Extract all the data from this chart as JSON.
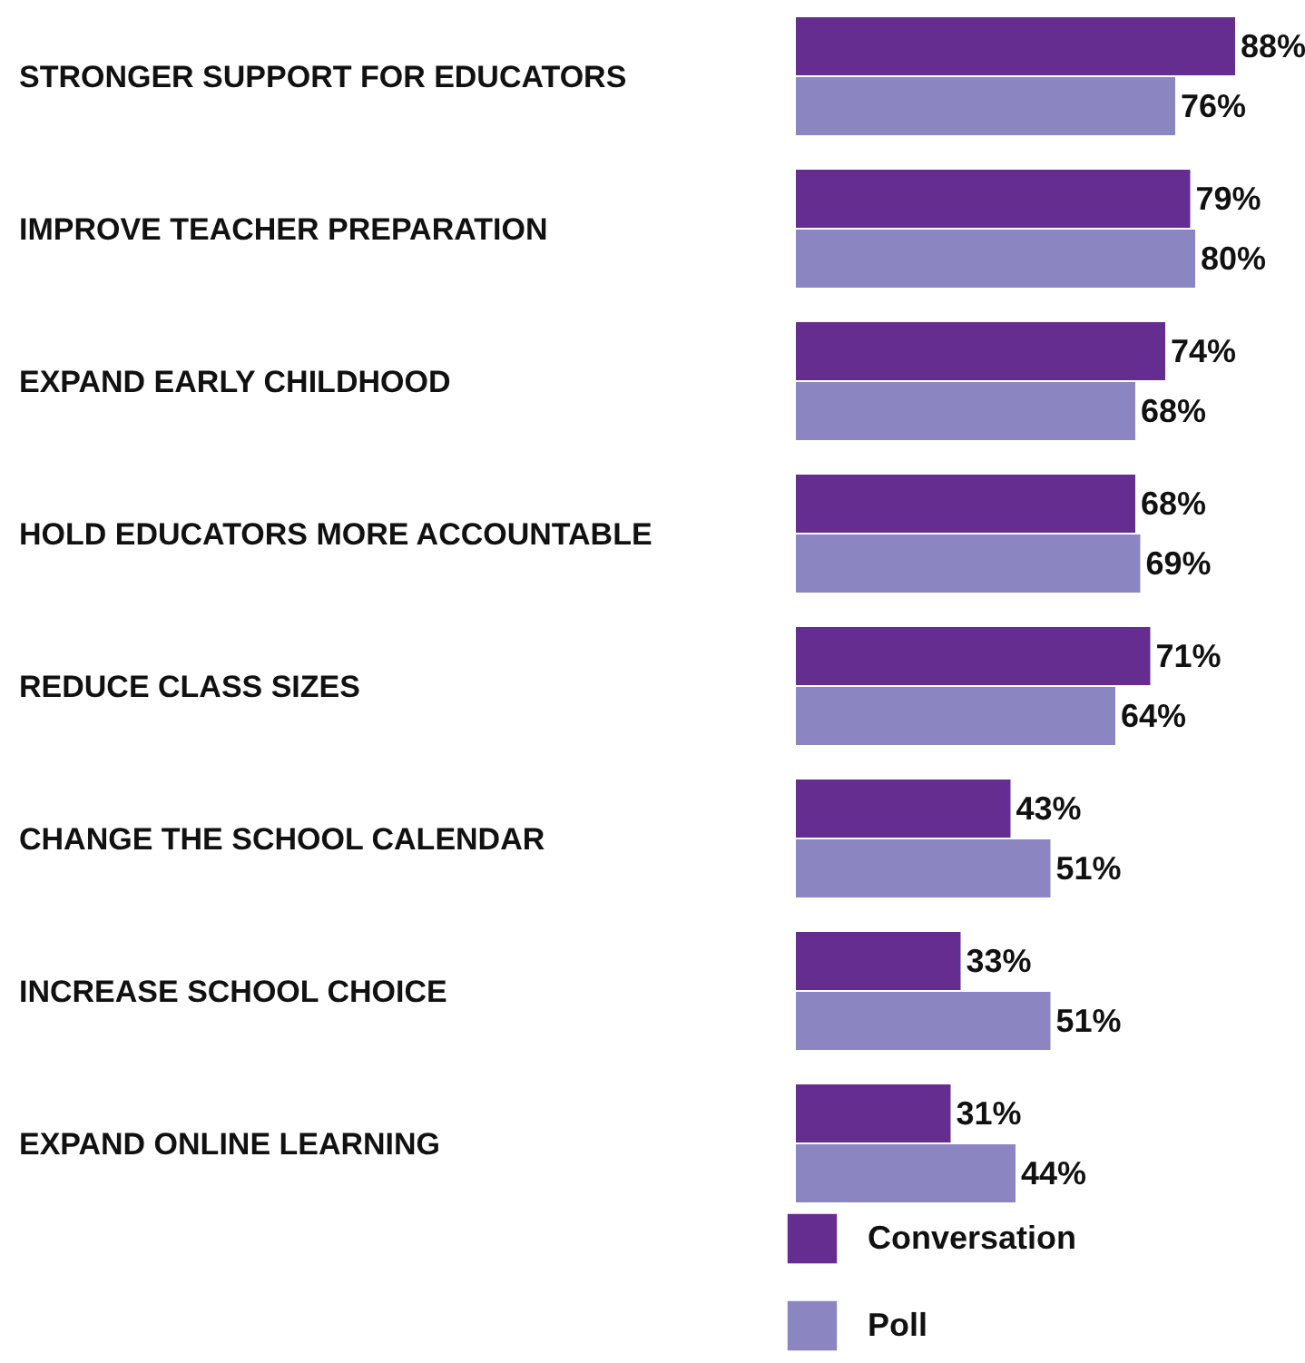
{
  "chart_data": {
    "type": "bar",
    "orientation": "horizontal",
    "tick_labels": false,
    "grid": false,
    "legend": "bottom",
    "categories": [
      "STRONGER SUPPORT FOR EDUCATORS",
      "IMPROVE TEACHER PREPARATION",
      "EXPAND EARLY CHILDHOOD",
      "HOLD EDUCATORS MORE ACCOUNTABLE",
      "REDUCE CLASS SIZES",
      "CHANGE THE SCHOOL CALENDAR",
      "INCREASE SCHOOL CHOICE",
      "EXPAND ONLINE LEARNING"
    ],
    "series": [
      {
        "name": "Conversation",
        "color": "#662d91",
        "values": [
          88,
          79,
          74,
          68,
          71,
          43,
          33,
          31
        ],
        "value_labels": [
          "88%",
          "79%",
          "74%",
          "68%",
          "71%",
          "43%",
          "33%",
          "31%"
        ]
      },
      {
        "name": "Poll",
        "color": "#8b85c1",
        "values": [
          76,
          80,
          68,
          69,
          64,
          51,
          51,
          44
        ],
        "value_labels": [
          "76%",
          "80%",
          "68%",
          "69%",
          "64%",
          "51%",
          "51%",
          "44%"
        ]
      }
    ]
  }
}
